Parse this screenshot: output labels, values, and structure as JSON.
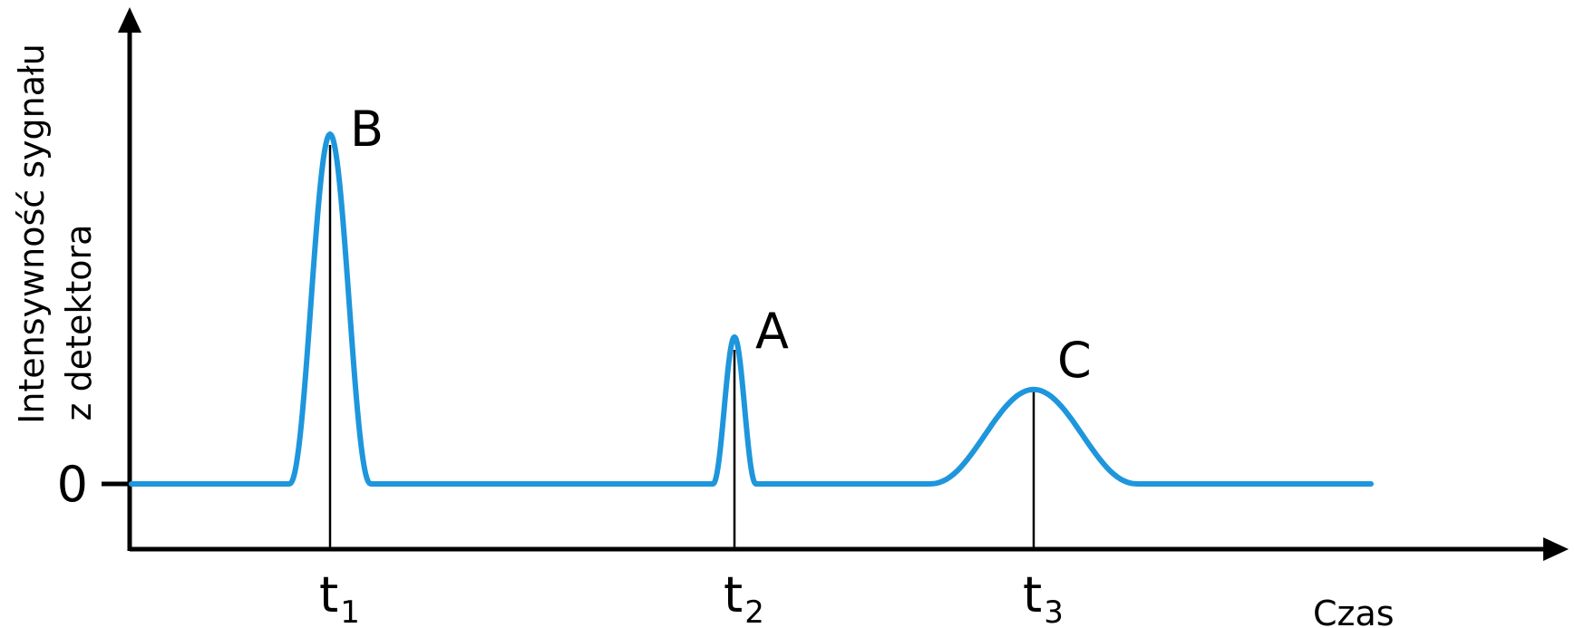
{
  "colors": {
    "signal": "#1E96DC",
    "axis": "#000000"
  },
  "axes": {
    "y_title_line1": "Intensywność sygnału",
    "y_title_line2": "z detektora",
    "x_title": "Czas",
    "zero_label": "0"
  },
  "ticks": [
    {
      "base": "t",
      "sub": "1"
    },
    {
      "base": "t",
      "sub": "2"
    },
    {
      "base": "t",
      "sub": "3"
    }
  ],
  "chart_data": {
    "type": "line",
    "series": [
      {
        "peaks": [
          {
            "label": "B",
            "time_index": 1,
            "relative_height": 1.0,
            "relative_width": "narrow"
          },
          {
            "label": "A",
            "time_index": 2,
            "relative_height": 0.42,
            "relative_width": "very narrow"
          },
          {
            "label": "C",
            "time_index": 3,
            "relative_height": 0.27,
            "relative_width": "wide"
          }
        ]
      }
    ],
    "x_ticks": [
      "t1",
      "t2",
      "t3"
    ],
    "y_ticks": [
      "0"
    ],
    "grid": false,
    "legend": "none"
  }
}
